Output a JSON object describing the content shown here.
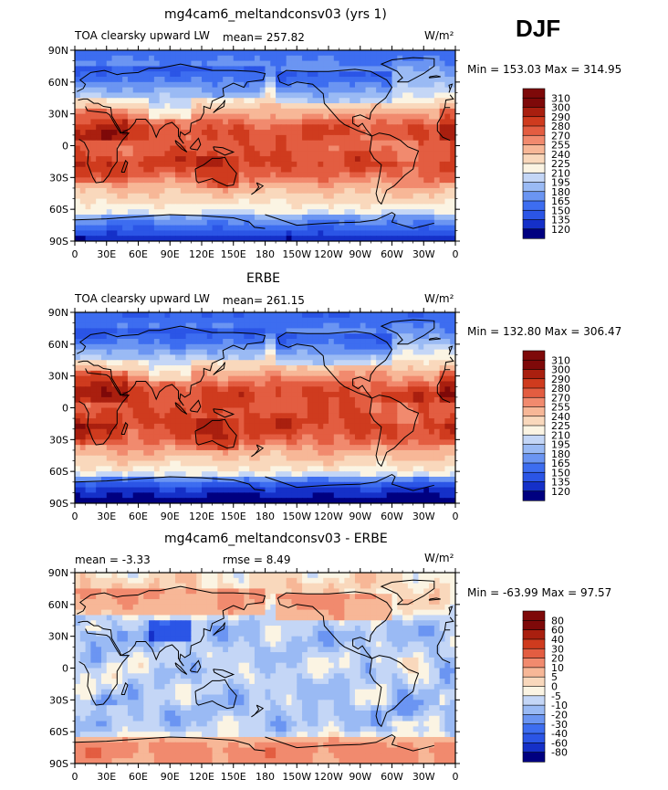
{
  "season": "DJF",
  "units": "W/m²",
  "lat_ticks": [
    "90N",
    "60N",
    "30N",
    "0",
    "30S",
    "60S",
    "90S"
  ],
  "lon_ticks": [
    "0",
    "30E",
    "60E",
    "90E",
    "120E",
    "150E",
    "180",
    "150W",
    "120W",
    "90W",
    "60W",
    "30W",
    "0"
  ],
  "panels": [
    {
      "title": "mg4cam6_meltandconsv03 (yrs 1)",
      "left_label": "TOA clearsky upward LW",
      "center_label": "mean= 257.82",
      "units": "W/m²",
      "min_max": "Min = 153.03 Max = 314.95",
      "colorbar_labels": [
        "310",
        "300",
        "290",
        "280",
        "270",
        "255",
        "240",
        "225",
        "210",
        "195",
        "180",
        "165",
        "150",
        "135",
        "120"
      ]
    },
    {
      "title": "ERBE",
      "left_label": "TOA clearsky upward LW",
      "center_label": "mean= 261.15",
      "units": "W/m²",
      "min_max": "Min = 132.80 Max = 306.47",
      "colorbar_labels": [
        "310",
        "300",
        "290",
        "280",
        "270",
        "255",
        "240",
        "225",
        "210",
        "195",
        "180",
        "165",
        "150",
        "135",
        "120"
      ]
    },
    {
      "title": "mg4cam6_meltandconsv03 - ERBE",
      "left_label": "mean =   -3.33",
      "center_label": "rmse =    8.49",
      "units": "W/m²",
      "min_max": "Min = -63.99 Max =  97.57",
      "colorbar_labels": [
        "80",
        "60",
        "40",
        "30",
        "20",
        "10",
        "5",
        "0",
        "-5",
        "-10",
        "-20",
        "-30",
        "-40",
        "-60",
        "-80"
      ]
    }
  ],
  "chart_data": [
    {
      "type": "heatmap",
      "title": "mg4cam6_meltandconsv03 (yrs 1)",
      "variable": "TOA clearsky upward LW",
      "units": "W/m^2",
      "mean": 257.82,
      "min": 153.03,
      "max": 314.95,
      "levels": [
        120,
        135,
        150,
        165,
        180,
        195,
        210,
        225,
        240,
        255,
        270,
        280,
        290,
        300,
        310
      ],
      "lat_range": [
        -90,
        90
      ],
      "lon_range": [
        0,
        360
      ],
      "zonal_profile": [
        {
          "lat": 90,
          "value": 170
        },
        {
          "lat": 75,
          "value": 185
        },
        {
          "lat": 60,
          "value": 205
        },
        {
          "lat": 45,
          "value": 235
        },
        {
          "lat": 30,
          "value": 268
        },
        {
          "lat": 15,
          "value": 290
        },
        {
          "lat": 0,
          "value": 285
        },
        {
          "lat": -15,
          "value": 292
        },
        {
          "lat": -30,
          "value": 280
        },
        {
          "lat": -45,
          "value": 255
        },
        {
          "lat": -60,
          "value": 232
        },
        {
          "lat": -75,
          "value": 195
        },
        {
          "lat": -90,
          "value": 155
        }
      ]
    },
    {
      "type": "heatmap",
      "title": "ERBE",
      "variable": "TOA clearsky upward LW",
      "units": "W/m^2",
      "mean": 261.15,
      "min": 132.8,
      "max": 306.47,
      "levels": [
        120,
        135,
        150,
        165,
        180,
        195,
        210,
        225,
        240,
        255,
        270,
        280,
        290,
        300,
        310
      ],
      "lat_range": [
        -90,
        90
      ],
      "lon_range": [
        0,
        360
      ],
      "zonal_profile": [
        {
          "lat": 90,
          "value": 165
        },
        {
          "lat": 75,
          "value": 180
        },
        {
          "lat": 60,
          "value": 205
        },
        {
          "lat": 45,
          "value": 240
        },
        {
          "lat": 30,
          "value": 272
        },
        {
          "lat": 15,
          "value": 292
        },
        {
          "lat": 0,
          "value": 288
        },
        {
          "lat": -15,
          "value": 294
        },
        {
          "lat": -30,
          "value": 284
        },
        {
          "lat": -45,
          "value": 260
        },
        {
          "lat": -60,
          "value": 235
        },
        {
          "lat": -75,
          "value": 170
        },
        {
          "lat": -90,
          "value": 140
        }
      ]
    },
    {
      "type": "heatmap",
      "title": "mg4cam6_meltandconsv03 - ERBE",
      "variable": "difference",
      "units": "W/m^2",
      "mean": -3.33,
      "rmse": 8.49,
      "min": -63.99,
      "max": 97.57,
      "levels": [
        -80,
        -60,
        -40,
        -30,
        -20,
        -10,
        -5,
        0,
        5,
        10,
        20,
        30,
        40,
        60,
        80
      ],
      "lat_range": [
        -90,
        90
      ],
      "lon_range": [
        0,
        360
      ],
      "zonal_profile": [
        {
          "lat": 90,
          "value": 5
        },
        {
          "lat": 75,
          "value": 8
        },
        {
          "lat": 60,
          "value": 4
        },
        {
          "lat": 45,
          "value": -3
        },
        {
          "lat": 30,
          "value": -6
        },
        {
          "lat": 15,
          "value": -4
        },
        {
          "lat": 0,
          "value": -3
        },
        {
          "lat": -15,
          "value": -4
        },
        {
          "lat": -30,
          "value": -5
        },
        {
          "lat": -45,
          "value": -6
        },
        {
          "lat": -60,
          "value": -3
        },
        {
          "lat": -75,
          "value": 15
        },
        {
          "lat": -90,
          "value": 12
        }
      ]
    }
  ],
  "colors": {
    "scale": [
      "#000080",
      "#1530c8",
      "#2b55e6",
      "#3d6df0",
      "#6b95f2",
      "#9abaf4",
      "#c4d6f6",
      "#fbf4e3",
      "#f9d8bc",
      "#f7b797",
      "#f18a6e",
      "#e35d41",
      "#cf3b1e",
      "#a91f0f",
      "#7e0909"
    ]
  }
}
